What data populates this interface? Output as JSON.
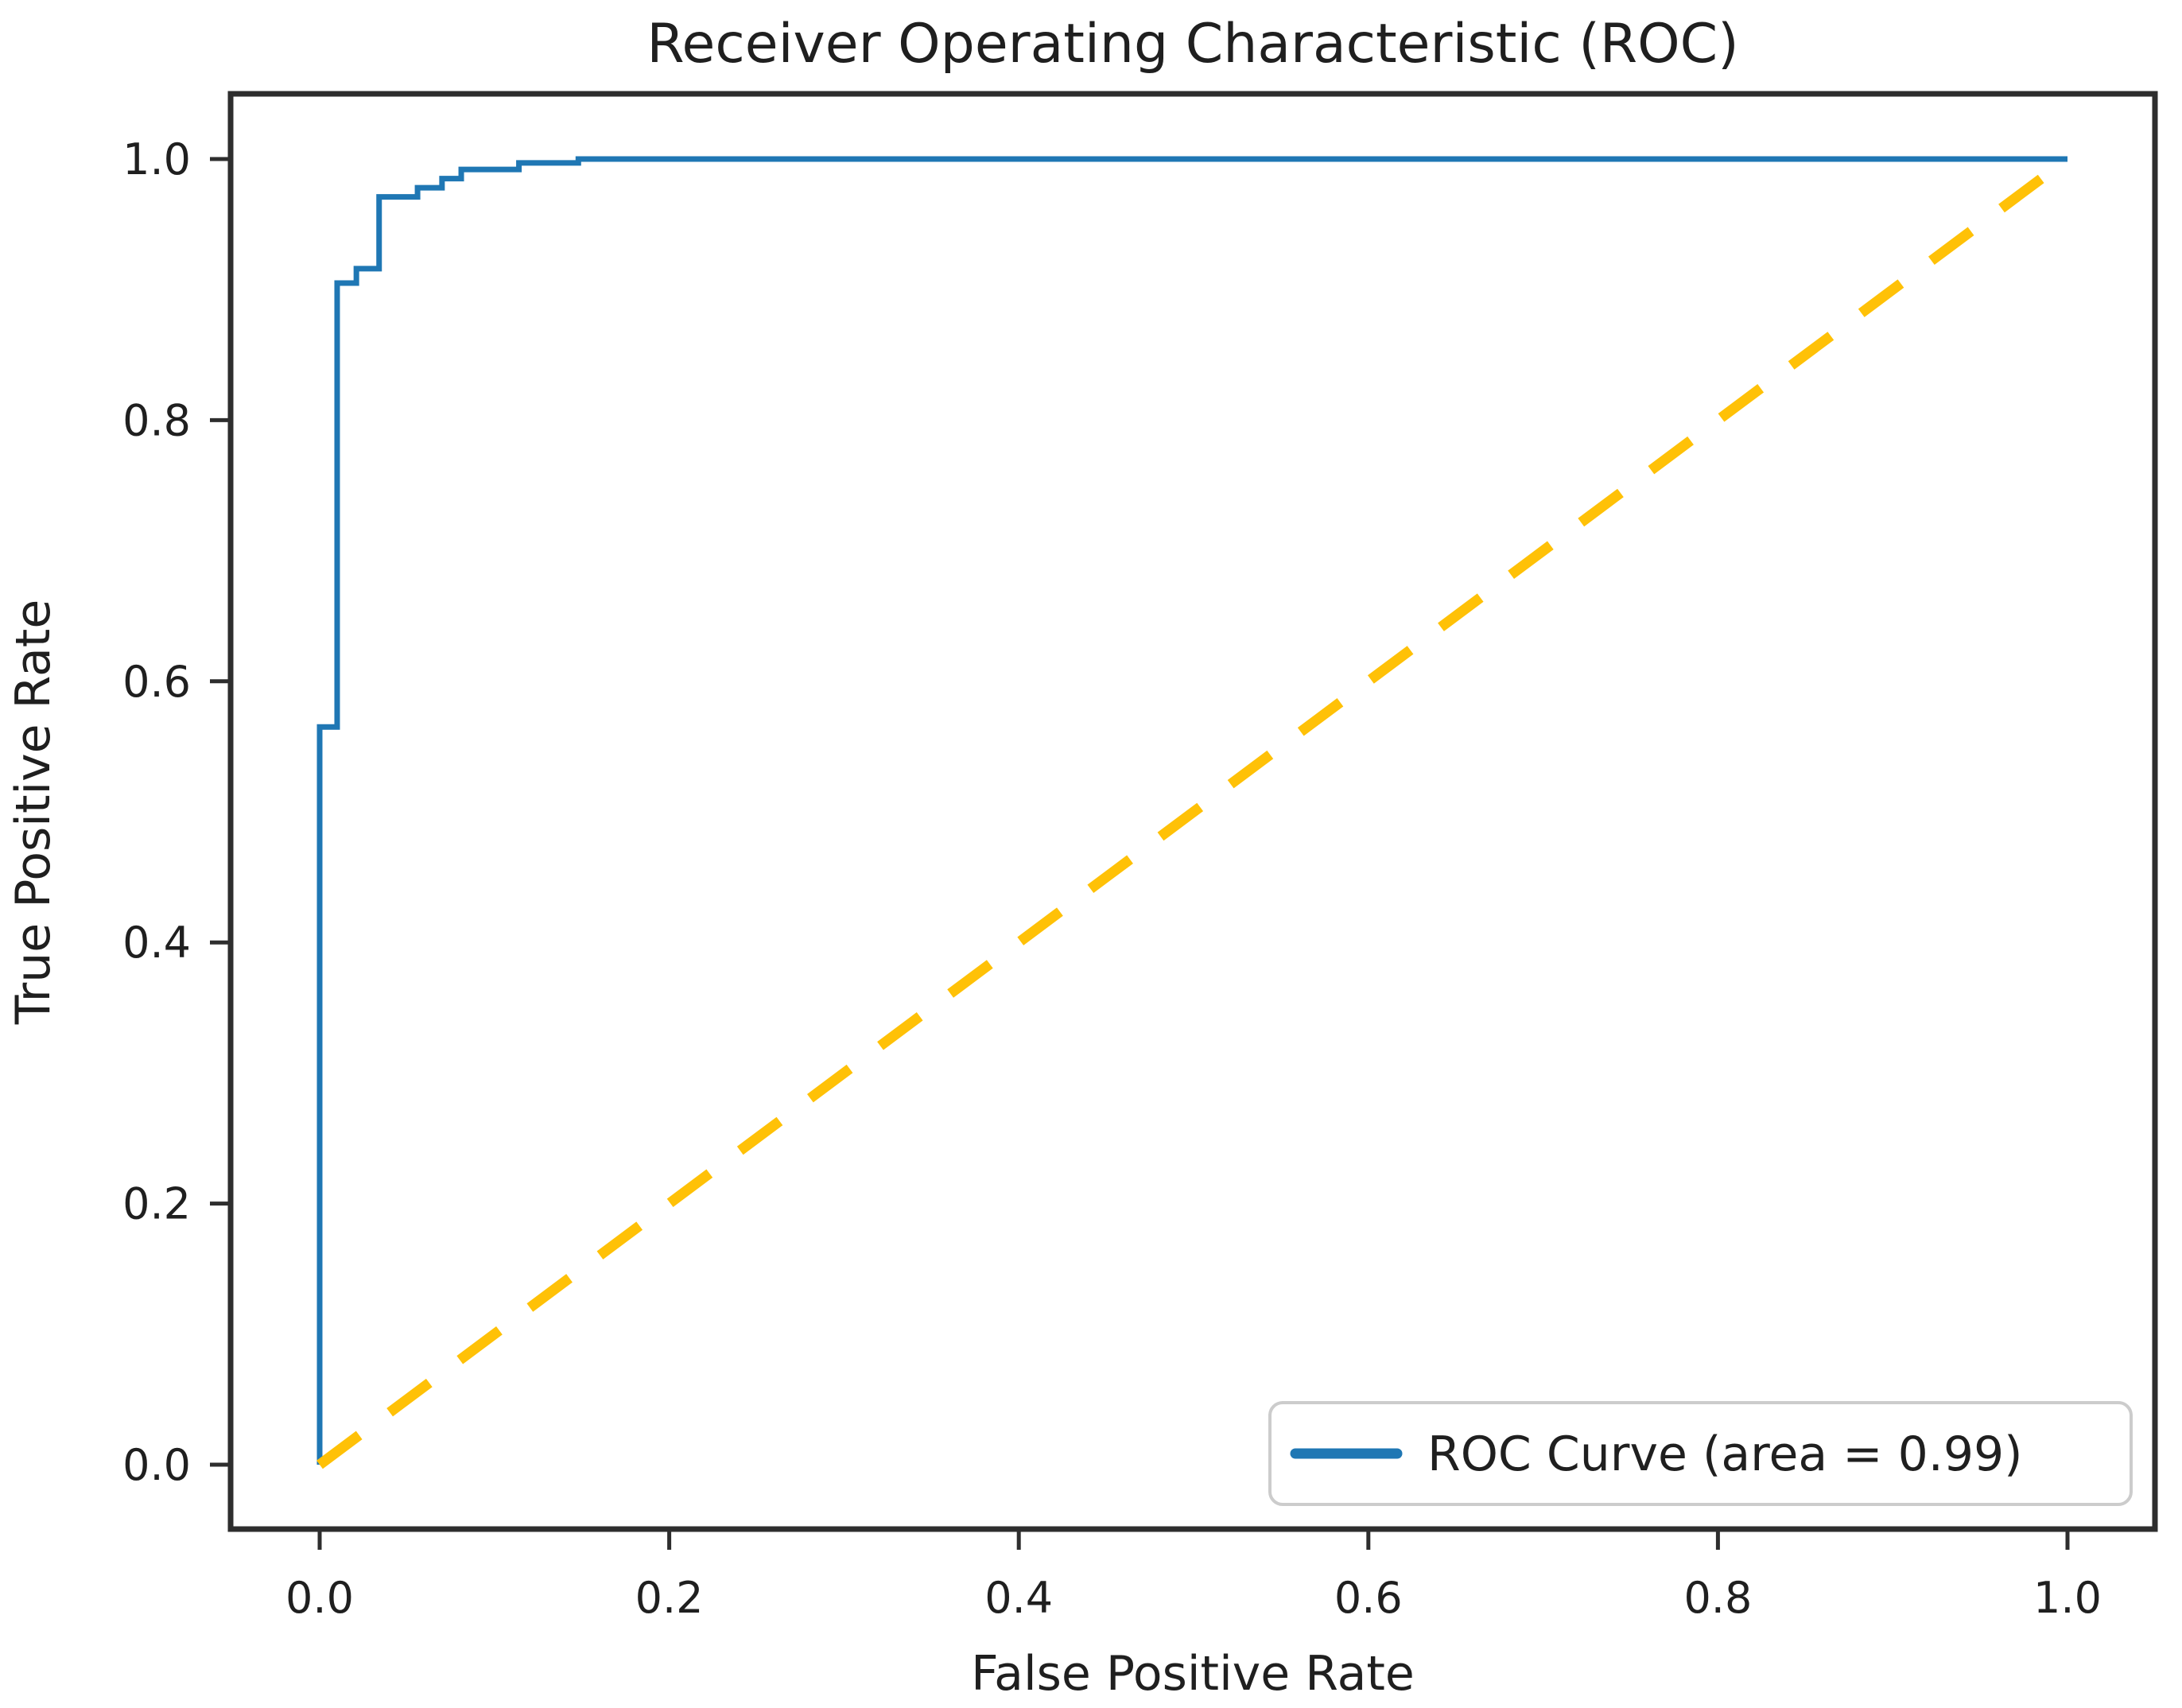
{
  "chart_data": {
    "type": "line",
    "title": "Receiver Operating Characteristic (ROC)",
    "xlabel": "False Positive Rate",
    "ylabel": "True Positive Rate",
    "xlim": [
      -0.05,
      1.05
    ],
    "ylim": [
      -0.05,
      1.05
    ],
    "grid": false,
    "xticks": {
      "values": [
        0.0,
        0.2,
        0.4,
        0.6,
        0.8,
        1.0
      ],
      "labels": [
        "0.0",
        "0.2",
        "0.4",
        "0.6",
        "0.8",
        "1.0"
      ]
    },
    "yticks": {
      "values": [
        0.0,
        0.2,
        0.4,
        0.6,
        0.8,
        1.0
      ],
      "labels": [
        "0.0",
        "0.2",
        "0.4",
        "0.6",
        "0.8",
        "1.0"
      ]
    },
    "colors": {
      "roc_line": "#1f77b4",
      "chance_line": "#FFC107",
      "spine": "#2e2e2e",
      "text": "#1f1f1f",
      "legend_border": "#cccccc",
      "legend_background": "#ffffff",
      "figure_background": "#ffffff"
    },
    "auc": 0.99,
    "legend": {
      "position": "lower right",
      "entries": [
        {
          "label": "ROC Curve (area = 0.99)",
          "color": "#1f77b4",
          "style": "solid"
        }
      ]
    },
    "series": [
      {
        "name": "ROC Curve",
        "kind": "step",
        "color": "#1f77b4",
        "style": "solid",
        "points": [
          [
            0.0,
            0.0
          ],
          [
            0.0,
            0.565
          ],
          [
            0.01,
            0.565
          ],
          [
            0.01,
            0.905
          ],
          [
            0.021,
            0.905
          ],
          [
            0.021,
            0.916
          ],
          [
            0.034,
            0.916
          ],
          [
            0.034,
            0.971
          ],
          [
            0.056,
            0.971
          ],
          [
            0.056,
            0.978
          ],
          [
            0.07,
            0.978
          ],
          [
            0.07,
            0.985
          ],
          [
            0.081,
            0.985
          ],
          [
            0.081,
            0.992
          ],
          [
            0.114,
            0.992
          ],
          [
            0.114,
            0.997
          ],
          [
            0.148,
            0.997
          ],
          [
            0.148,
            1.0
          ],
          [
            1.0,
            1.0
          ]
        ]
      },
      {
        "name": "Chance diagonal",
        "kind": "line",
        "color": "#FFC107",
        "style": "dashed",
        "points": [
          [
            0.0,
            0.0
          ],
          [
            1.0,
            1.0
          ]
        ]
      }
    ]
  }
}
